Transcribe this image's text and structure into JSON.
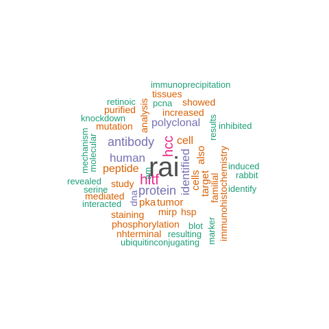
{
  "colors": {
    "teal": "#1b9e77",
    "orange": "#d95f02",
    "purple": "#7570b3",
    "magenta": "#e7298a",
    "dark": "#4d4d4d"
  },
  "words": [
    {
      "text": "rai",
      "color": "dark"
    },
    {
      "text": "hltf",
      "color": "magenta"
    },
    {
      "text": "hcc",
      "color": "magenta"
    },
    {
      "text": "antibody",
      "color": "purple"
    },
    {
      "text": "human",
      "color": "purple"
    },
    {
      "text": "protein",
      "color": "purple"
    },
    {
      "text": "polyclonal",
      "color": "purple"
    },
    {
      "text": "identified",
      "color": "purple"
    },
    {
      "text": "immunoprecipitation",
      "color": "teal"
    },
    {
      "text": "tissues",
      "color": "orange"
    },
    {
      "text": "retinoic",
      "color": "teal"
    },
    {
      "text": "pcna",
      "color": "teal"
    },
    {
      "text": "showed",
      "color": "orange"
    },
    {
      "text": "purified",
      "color": "orange"
    },
    {
      "text": "increased",
      "color": "orange"
    },
    {
      "text": "knockdown",
      "color": "teal"
    },
    {
      "text": "mutation",
      "color": "orange"
    },
    {
      "text": "analysis",
      "color": "orange"
    },
    {
      "text": "results",
      "color": "teal"
    },
    {
      "text": "inhibited",
      "color": "teal"
    },
    {
      "text": "cell",
      "color": "orange"
    },
    {
      "text": "also",
      "color": "orange"
    },
    {
      "text": "mechanism",
      "color": "teal"
    },
    {
      "text": "molecular",
      "color": "teal"
    },
    {
      "text": "peptide",
      "color": "orange"
    },
    {
      "text": "am",
      "color": "teal"
    },
    {
      "text": "induced",
      "color": "teal"
    },
    {
      "text": "rabbit",
      "color": "teal"
    },
    {
      "text": "revealed",
      "color": "teal"
    },
    {
      "text": "study",
      "color": "orange"
    },
    {
      "text": "cells",
      "color": "orange"
    },
    {
      "text": "target",
      "color": "orange"
    },
    {
      "text": "familial",
      "color": "orange"
    },
    {
      "text": "identify",
      "color": "teal"
    },
    {
      "text": "serine",
      "color": "teal"
    },
    {
      "text": "mediated",
      "color": "orange"
    },
    {
      "text": "dna",
      "color": "purple"
    },
    {
      "text": "interacted",
      "color": "teal"
    },
    {
      "text": "pka",
      "color": "orange"
    },
    {
      "text": "tumor",
      "color": "orange"
    },
    {
      "text": "immunohistochemistry",
      "color": "orange"
    },
    {
      "text": "staining",
      "color": "orange"
    },
    {
      "text": "mirp",
      "color": "orange"
    },
    {
      "text": "hsp",
      "color": "orange"
    },
    {
      "text": "marker",
      "color": "teal"
    },
    {
      "text": "phosphorylation",
      "color": "orange"
    },
    {
      "text": "blot",
      "color": "teal"
    },
    {
      "text": "nhterminal",
      "color": "orange"
    },
    {
      "text": "resulting",
      "color": "teal"
    },
    {
      "text": "ubiquitinconjugating",
      "color": "teal"
    }
  ]
}
